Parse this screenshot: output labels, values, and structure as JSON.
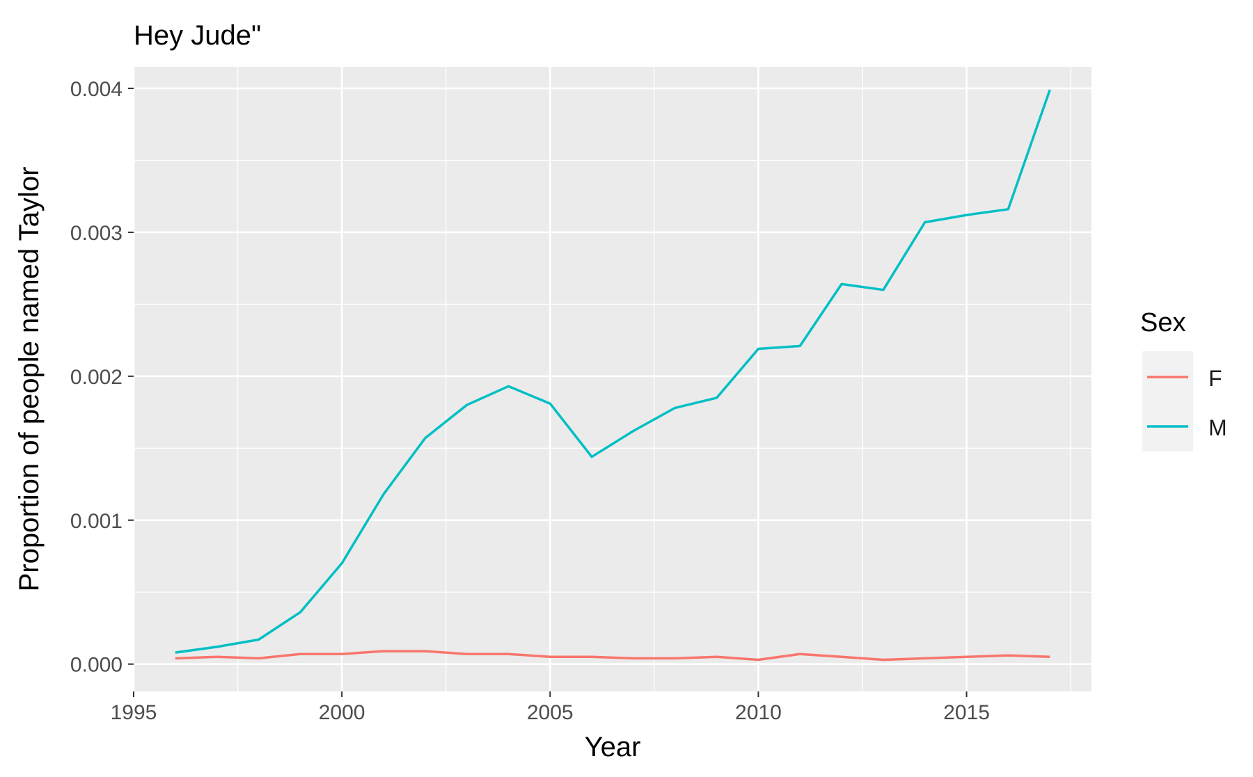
{
  "chart_data": {
    "type": "line",
    "title": "Hey Jude\"",
    "xlabel": "Year",
    "ylabel": "Proportion of people named Taylor",
    "xlim": [
      1995,
      2018
    ],
    "ylim": [
      -0.00019,
      0.00415
    ],
    "x_ticks": [
      1995,
      2000,
      2005,
      2010,
      2015
    ],
    "x_tick_labels": [
      "1995",
      "2000",
      "2005",
      "2010",
      "2015"
    ],
    "y_ticks": [
      0,
      0.001,
      0.002,
      0.003,
      0.004
    ],
    "y_tick_labels": [
      "0.000",
      "0.001",
      "0.002",
      "0.003",
      "0.004"
    ],
    "grid": true,
    "legend": {
      "title": "Sex",
      "placement": "right"
    },
    "x": [
      1996,
      1997,
      1998,
      1999,
      2000,
      2001,
      2002,
      2003,
      2004,
      2005,
      2006,
      2007,
      2008,
      2009,
      2010,
      2011,
      2012,
      2013,
      2014,
      2015,
      2016,
      2017
    ],
    "series": [
      {
        "name": "F",
        "color": "#F8766D",
        "values": [
          4e-05,
          5e-05,
          4e-05,
          7e-05,
          7e-05,
          9e-05,
          9e-05,
          7e-05,
          7e-05,
          5e-05,
          5e-05,
          4e-05,
          4e-05,
          5e-05,
          3e-05,
          7e-05,
          5e-05,
          3e-05,
          4e-05,
          5e-05,
          6e-05,
          5e-05
        ]
      },
      {
        "name": "M",
        "color": "#00BFC4",
        "values": [
          8e-05,
          0.00012,
          0.00017,
          0.00036,
          0.0007,
          0.00118,
          0.00157,
          0.0018,
          0.00193,
          0.00181,
          0.00144,
          0.00162,
          0.00178,
          0.00185,
          0.00219,
          0.00221,
          0.00264,
          0.0026,
          0.00307,
          0.00312,
          0.00316,
          0.00399
        ]
      }
    ]
  }
}
